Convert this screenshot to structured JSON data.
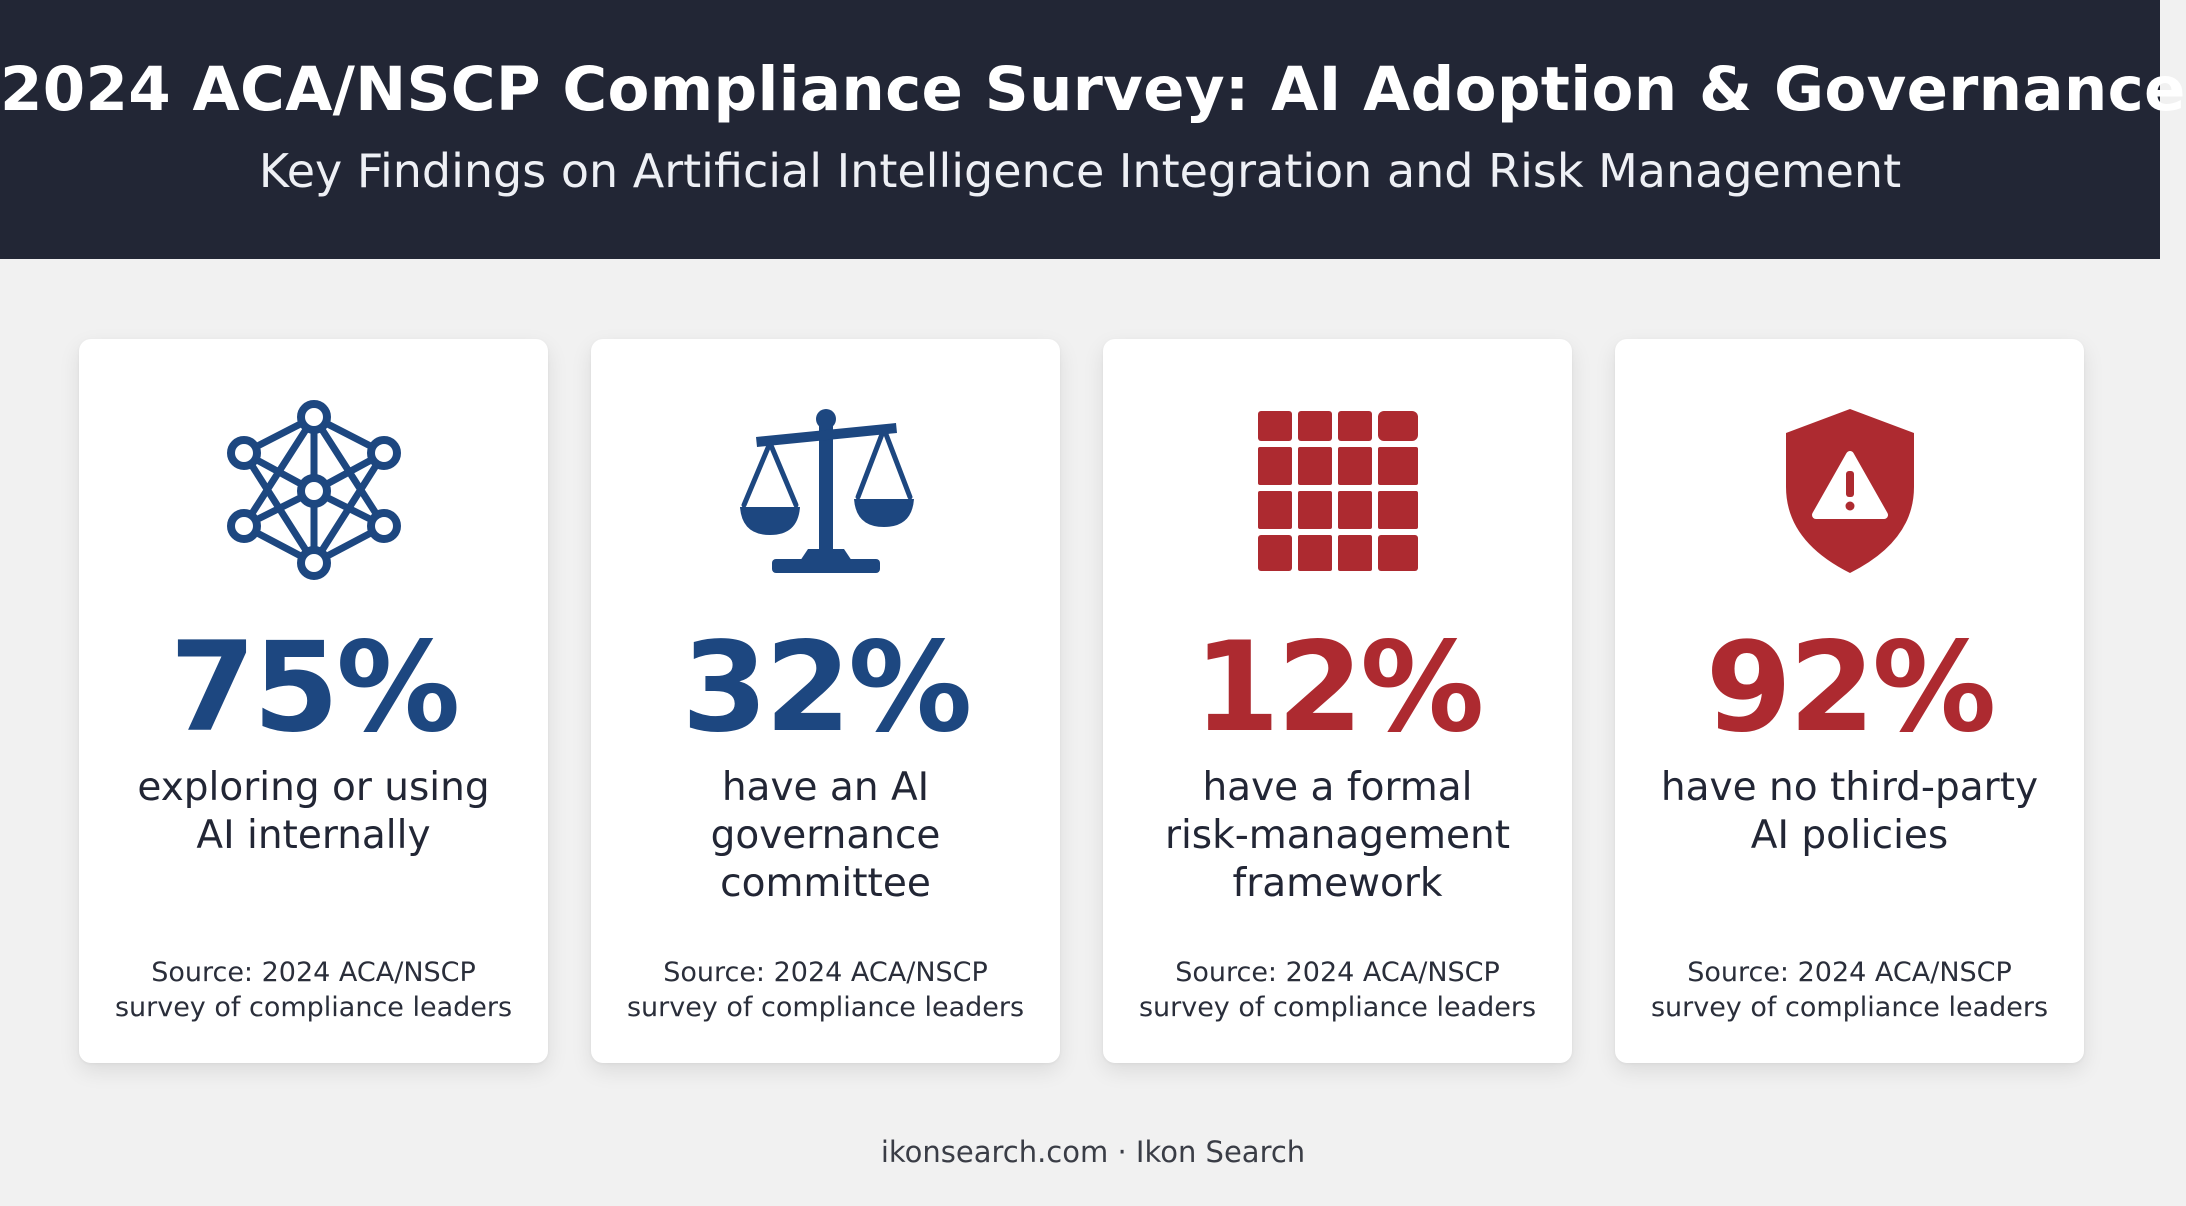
{
  "header": {
    "title": "2024 ACA/NSCP Compliance Survey: AI Adoption & Governance",
    "subtitle": "Key Findings on Artificial Intelligence Integration and Risk Management"
  },
  "colors": {
    "header_bg": "#222635",
    "blue": "#1d4780",
    "red": "#ad2a30",
    "page_bg": "#f1f1f1"
  },
  "cards": [
    {
      "icon": "neural-network-icon",
      "stat": "75%",
      "value": 75,
      "desc_line1": "exploring or using",
      "desc_line2": "AI internally",
      "desc_line3": "",
      "source_line1": "Source: 2024 ACA/NSCP",
      "source_line2": "survey of compliance leaders",
      "accent": "#1d4780"
    },
    {
      "icon": "scales-icon",
      "stat": "32%",
      "value": 32,
      "desc_line1": "have an AI",
      "desc_line2": "governance",
      "desc_line3": "committee",
      "source_line1": "Source: 2024 ACA/NSCP",
      "source_line2": "survey of compliance leaders",
      "accent": "#1d4780"
    },
    {
      "icon": "grid-matrix-icon",
      "stat": "12%",
      "value": 12,
      "desc_line1": "have a formal",
      "desc_line2": "risk-management",
      "desc_line3": "framework",
      "source_line1": "Source: 2024 ACA/NSCP",
      "source_line2": "survey of compliance leaders",
      "accent": "#ad2a30"
    },
    {
      "icon": "shield-warning-icon",
      "stat": "92%",
      "value": 92,
      "desc_line1": "have no third-party",
      "desc_line2": "AI policies",
      "desc_line3": "",
      "source_line1": "Source: 2024 ACA/NSCP",
      "source_line2": "survey of compliance leaders",
      "accent": "#ad2a30"
    }
  ],
  "footer": {
    "text": "ikonsearch.com · Ikon Search"
  }
}
